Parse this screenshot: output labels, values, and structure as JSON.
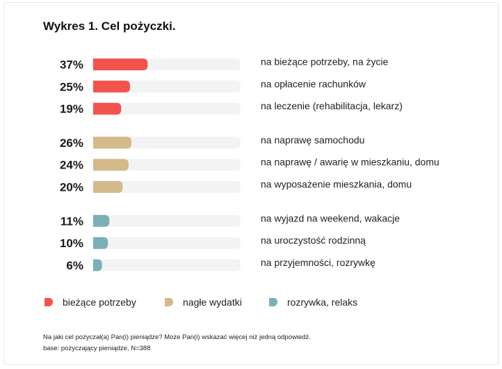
{
  "title": "Wykres 1. Cel pożyczki.",
  "chart_data": {
    "type": "bar",
    "orientation": "horizontal",
    "xlim": [
      0,
      100
    ],
    "value_suffix": "%",
    "categories": [
      "na bieżące potrzeby, na życie",
      "na opłacenie rachunków",
      "na leczenie (rehabilitacja, lekarz)",
      "na naprawę samochodu",
      "na naprawę / awarię w mieszkaniu, domu",
      "na wyposażenie mieszkania, domu",
      "na wyjazd na weekend, wakacje",
      "na uroczystość rodzinną",
      "na przyjemności, rozrywkę"
    ],
    "values": [
      37,
      25,
      19,
      26,
      24,
      20,
      11,
      10,
      6
    ],
    "groups": [
      0,
      0,
      0,
      1,
      1,
      1,
      2,
      2,
      2
    ],
    "series": [
      {
        "name": "bieżące potrzeby",
        "color": "#f2544d"
      },
      {
        "name": "nagłe wydatki",
        "color": "#d4b98a"
      },
      {
        "name": "rozrywka, relaks",
        "color": "#7aafb6"
      }
    ],
    "track_color": "#f3f3f3",
    "legend_position": "bottom"
  },
  "footnote": {
    "question": "Na jaki cel pożyczał(a) Pan(i) pieniądze? Może Pan(i) wskazać więcej niż jedną odpowiedź.",
    "base": "base: pożyczający pieniądze, N=388"
  }
}
